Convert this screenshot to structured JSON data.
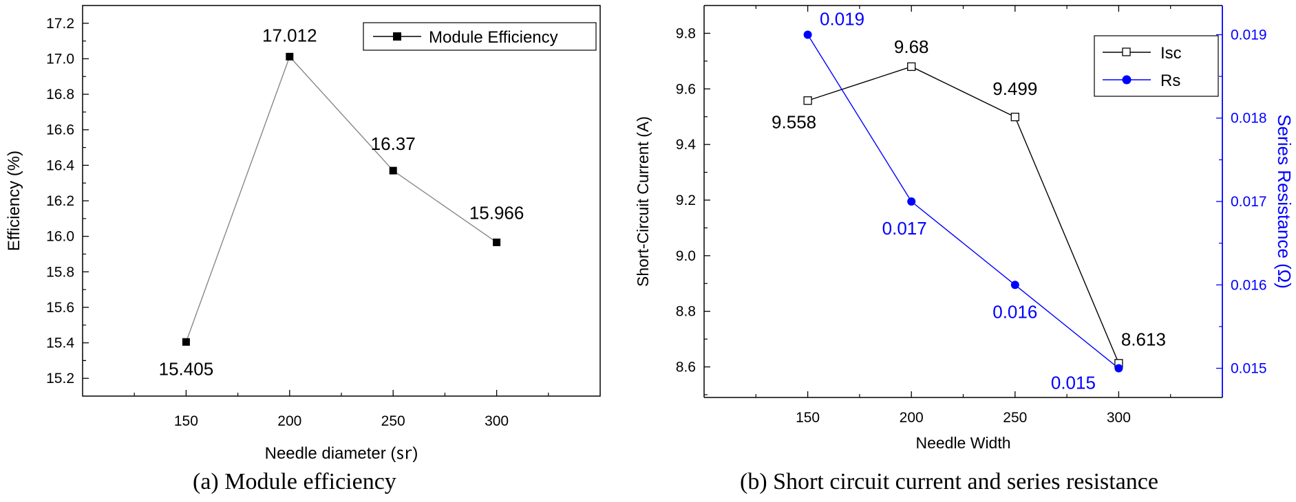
{
  "chart_data": [
    {
      "type": "line",
      "x": [
        150,
        200,
        250,
        300
      ],
      "series": [
        {
          "name": "Module Efficiency",
          "values": [
            15.405,
            17.012,
            16.37,
            15.966
          ],
          "color": "#000000",
          "marker": "filled-square"
        }
      ],
      "data_labels": [
        "15.405",
        "17.012",
        "16.37",
        "15.966"
      ],
      "xlabel": "Needle diameter (㏛)",
      "ylabel": "Efficiency (%)",
      "xlim": [
        100,
        350
      ],
      "ylim": [
        15.1,
        17.3
      ],
      "xticks": [
        "150",
        "200",
        "250",
        "300"
      ],
      "yticks": [
        "15.2",
        "15.4",
        "15.6",
        "15.8",
        "16.0",
        "16.2",
        "16.4",
        "16.6",
        "16.8",
        "17.0",
        "17.2"
      ],
      "legend": {
        "position": "top-right",
        "entries": [
          "Module Efficiency"
        ]
      },
      "caption": "(a) Module efficiency"
    },
    {
      "type": "line",
      "x": [
        150,
        200,
        250,
        300
      ],
      "series": [
        {
          "name": "Isc",
          "axis": "left",
          "values": [
            9.558,
            9.68,
            9.499,
            8.613
          ],
          "color": "#000000",
          "marker": "open-square",
          "data_labels": [
            "9.558",
            "9.68",
            "9.499",
            "8.613"
          ]
        },
        {
          "name": "Rs",
          "axis": "right",
          "values": [
            0.019,
            0.017,
            0.016,
            0.015
          ],
          "color": "#0000ff",
          "marker": "filled-circle",
          "data_labels": [
            "0.019",
            "0.017",
            "0.016",
            "0.015"
          ]
        }
      ],
      "xlabel": "Needle Width",
      "ylabel": "Short-Circuit Current (A)",
      "y2label": "Series Resistance (Ω)",
      "xlim": [
        100,
        350
      ],
      "ylim": [
        8.49,
        9.9
      ],
      "y2lim": [
        0.01465,
        0.01935
      ],
      "xticks": [
        "150",
        "200",
        "250",
        "300"
      ],
      "yticks": [
        "8.6",
        "8.8",
        "9.0",
        "9.2",
        "9.4",
        "9.6",
        "9.8"
      ],
      "y2ticks": [
        "0.015",
        "0.016",
        "0.017",
        "0.018",
        "0.019"
      ],
      "accent_color": "#0000ff",
      "legend": {
        "position": "top-right",
        "entries": [
          "Isc",
          "Rs"
        ]
      },
      "caption": "(b) Short circuit current and series resistance"
    }
  ]
}
